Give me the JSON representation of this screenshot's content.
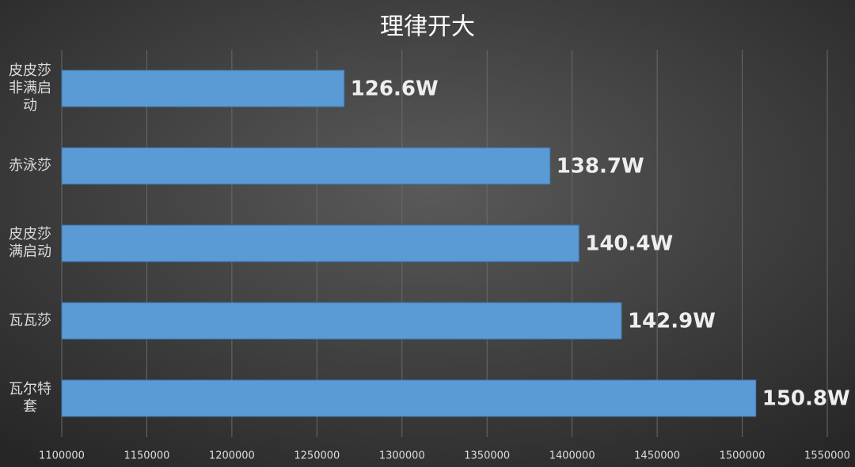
{
  "chart_data": {
    "type": "hbar",
    "title": "理律开大",
    "categories": [
      "皮皮莎非满启动",
      "赤泳莎",
      "皮皮莎满启动",
      "瓦瓦莎",
      "瓦尔特套"
    ],
    "values": [
      1266000,
      1387000,
      1404000,
      1429000,
      1508000
    ],
    "value_labels": [
      "126.6W",
      "138.7W",
      "140.4W",
      "142.9W",
      "150.8W"
    ],
    "color": "#5b9bd5",
    "xlim": [
      1100000,
      1550000
    ],
    "xticks": [
      1100000,
      1150000,
      1200000,
      1250000,
      1300000,
      1350000,
      1400000,
      1450000,
      1500000,
      1550000
    ],
    "grid": true
  }
}
